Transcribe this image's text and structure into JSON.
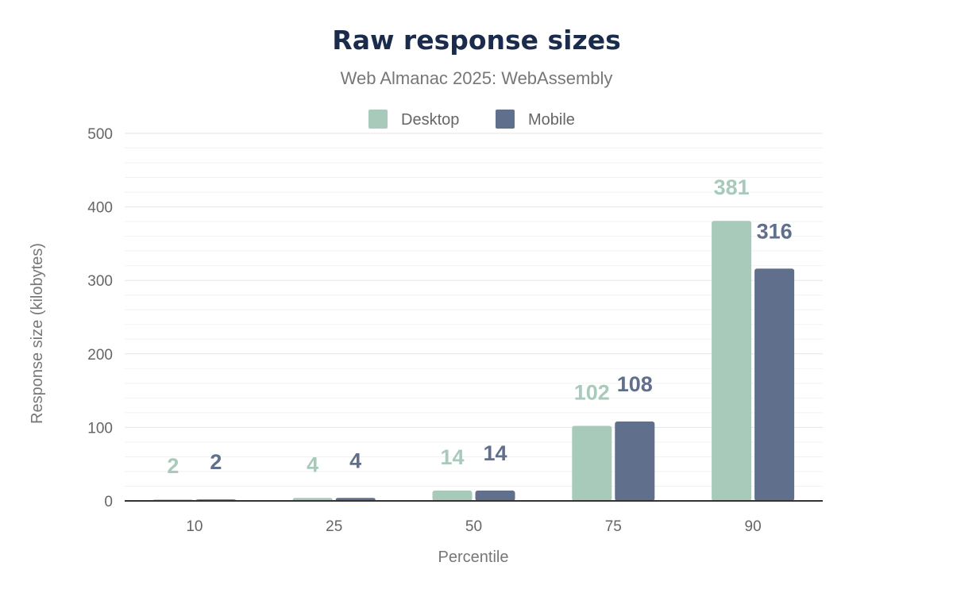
{
  "chart_data": {
    "type": "bar",
    "title": "Raw response sizes",
    "subtitle": "Web Almanac 2025: WebAssembly",
    "xlabel": "Percentile",
    "ylabel": "Response size (kilobytes)",
    "categories": [
      "10",
      "25",
      "50",
      "75",
      "90"
    ],
    "series": [
      {
        "name": "Desktop",
        "color": "#a8cabb",
        "values": [
          2,
          4,
          14,
          102,
          381
        ]
      },
      {
        "name": "Mobile",
        "color": "#5f6f8c",
        "values": [
          2,
          4,
          14,
          108,
          316
        ]
      }
    ],
    "ylim": [
      0,
      500
    ],
    "yticks": [
      "0",
      "100",
      "200",
      "300",
      "400",
      "500"
    ],
    "grid": true,
    "legend": "top-center",
    "data_labels": true
  }
}
